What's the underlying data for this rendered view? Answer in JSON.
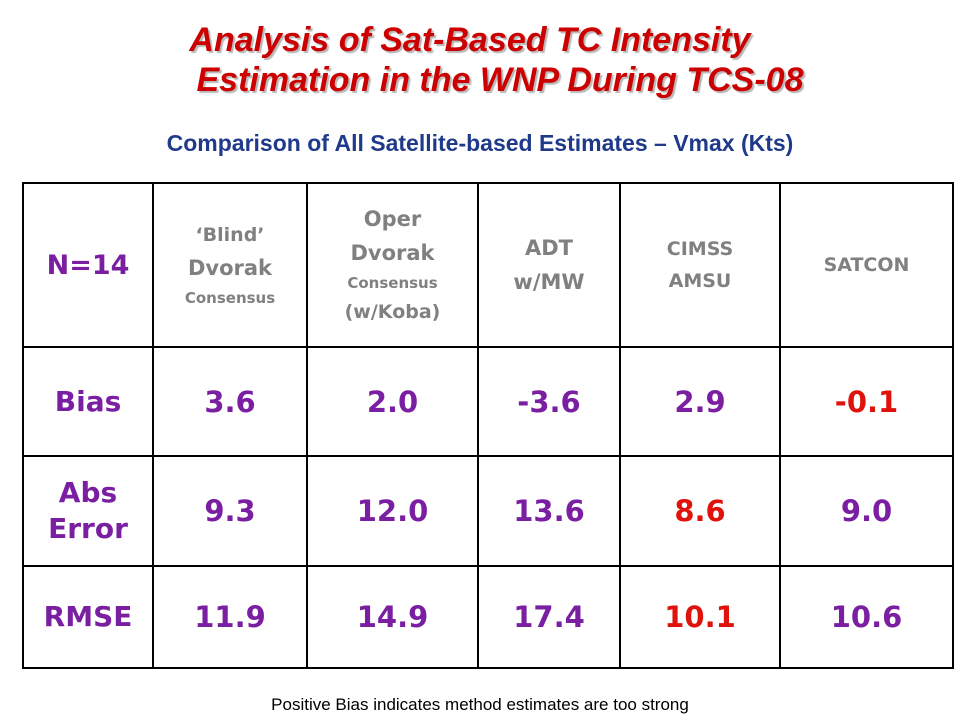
{
  "title": {
    "line1": "Analysis of Sat-Based TC Intensity",
    "line2": "Estimation in the WNP During TCS-08"
  },
  "subtitle": "Comparison of All Satellite-based Estimates – Vmax (Kts)",
  "table": {
    "corner": "N=14",
    "columns": [
      {
        "lines": [
          "‘Blind’",
          "Dvorak",
          "Consensus"
        ]
      },
      {
        "lines": [
          "Oper",
          "Dvorak",
          "Consensus",
          "(w/Koba)"
        ]
      },
      {
        "lines": [
          "ADT",
          "w/MW"
        ]
      },
      {
        "lines": [
          "CIMSS",
          "AMSU"
        ]
      },
      {
        "lines": [
          "SATCON"
        ]
      }
    ],
    "rows": [
      {
        "label": [
          "Bias"
        ],
        "values": [
          "3.6",
          "2.0",
          "-3.6",
          "2.9",
          "-0.1"
        ],
        "highlight_index": 4
      },
      {
        "label": [
          "Abs",
          "Error"
        ],
        "values": [
          "9.3",
          "12.0",
          "13.6",
          "8.6",
          "9.0"
        ],
        "highlight_index": 3
      },
      {
        "label": [
          "RMSE"
        ],
        "values": [
          "11.9",
          "14.9",
          "17.4",
          "10.1",
          "10.6"
        ],
        "highlight_index": 3
      }
    ]
  },
  "colors": {
    "title": "#cc0000",
    "subtitle": "#1f3a8a",
    "label_purple": "#7a1fa2",
    "header_gray": "#808080",
    "highlight_red": "#e0120c"
  },
  "footnote": "Positive Bias indicates method estimates are too strong"
}
